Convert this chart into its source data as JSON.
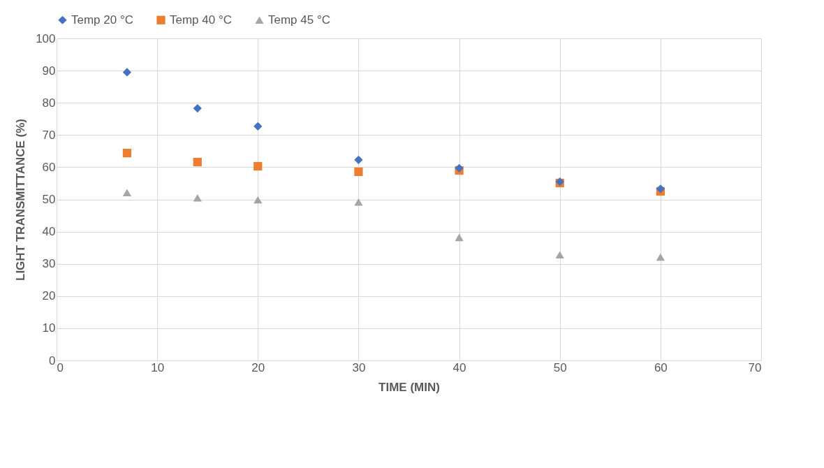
{
  "chart_data": {
    "type": "scatter",
    "xlabel": "TIME (MIN)",
    "ylabel": "LIGHT TRANSMITTANCE (%)",
    "x": [
      7,
      14,
      20,
      30,
      40,
      50,
      60
    ],
    "series": [
      {
        "name": "Temp 20 °C",
        "color": "#4472c4",
        "marker": "diamond",
        "values": [
          89.5,
          78.3,
          72.7,
          62.3,
          59.7,
          55.5,
          53.3
        ]
      },
      {
        "name": "Temp 40 °C",
        "color": "#ed7d31",
        "marker": "square",
        "values": [
          64.4,
          61.6,
          60.3,
          58.6,
          59.0,
          55.1,
          52.5
        ]
      },
      {
        "name": "Temp 45 °C",
        "color": "#a5a5a5",
        "marker": "triangle",
        "values": [
          52.1,
          50.5,
          49.9,
          49.2,
          38.2,
          32.8,
          32.1
        ]
      }
    ],
    "xlim": [
      0,
      70
    ],
    "xticks": [
      0,
      10,
      20,
      30,
      40,
      50,
      60,
      70
    ],
    "ylim": [
      0,
      100
    ],
    "yticks": [
      0,
      10,
      20,
      30,
      40,
      50,
      60,
      70,
      80,
      90,
      100
    ],
    "grid": true,
    "legend": "top"
  }
}
